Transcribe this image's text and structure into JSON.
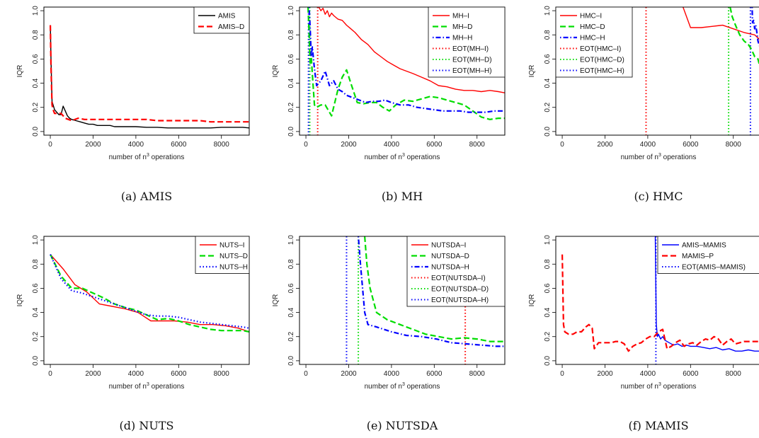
{
  "chart_data": [
    {
      "id": "amis",
      "type": "line",
      "caption": "(a)  AMIS",
      "xlabel": "number of n³ operations",
      "ylabel": "IQR",
      "xlim": [
        -300,
        9300
      ],
      "ylim": [
        -0.03,
        1.03
      ],
      "xticks": [
        0,
        2000,
        4000,
        6000,
        8000
      ],
      "yticks": [
        0.0,
        0.2,
        0.4,
        0.6,
        0.8,
        1.0
      ],
      "legend_position": "top-right",
      "series": [
        {
          "name": "AMIS",
          "color": "#000000",
          "dash": "solid",
          "x": [
            0,
            30,
            80,
            130,
            200,
            300,
            400,
            500,
            600,
            700,
            800,
            900,
            1000,
            1200,
            1400,
            1600,
            1800,
            2000,
            2200,
            2400,
            2600,
            2800,
            3000,
            3500,
            4000,
            4500,
            5000,
            5500,
            6000,
            6500,
            7000,
            7500,
            8000,
            8500,
            9000,
            9300
          ],
          "y": [
            0.88,
            0.6,
            0.25,
            0.22,
            0.18,
            0.16,
            0.14,
            0.14,
            0.21,
            0.17,
            0.13,
            0.11,
            0.1,
            0.09,
            0.08,
            0.07,
            0.06,
            0.06,
            0.05,
            0.05,
            0.05,
            0.05,
            0.04,
            0.04,
            0.04,
            0.035,
            0.035,
            0.03,
            0.03,
            0.03,
            0.03,
            0.03,
            0.035,
            0.035,
            0.035,
            0.03
          ]
        },
        {
          "name": "AMIS–D",
          "color": "#ff0000",
          "dash": "dashed",
          "x": [
            0,
            30,
            80,
            130,
            200,
            300,
            500,
            700,
            1000,
            1300,
            1600,
            2000,
            2500,
            3000,
            3500,
            4000,
            4500,
            5000,
            5500,
            6000,
            6500,
            7000,
            7500,
            8000,
            8500,
            9000,
            9300
          ],
          "y": [
            0.88,
            0.55,
            0.22,
            0.18,
            0.15,
            0.15,
            0.15,
            0.11,
            0.09,
            0.11,
            0.1,
            0.1,
            0.1,
            0.1,
            0.1,
            0.1,
            0.1,
            0.09,
            0.09,
            0.09,
            0.09,
            0.09,
            0.08,
            0.08,
            0.08,
            0.08,
            0.08
          ]
        }
      ],
      "vlines": []
    },
    {
      "id": "mh",
      "type": "line",
      "caption": "(b)  MH",
      "xlabel": "number of n³ operations",
      "ylabel": "IQR",
      "xlim": [
        -300,
        9300
      ],
      "ylim": [
        -0.03,
        1.03
      ],
      "xticks": [
        0,
        2000,
        4000,
        6000,
        8000
      ],
      "yticks": [
        0.0,
        0.2,
        0.4,
        0.6,
        0.8,
        1.0
      ],
      "legend_position": "top-right",
      "series": [
        {
          "name": "MH–I",
          "color": "#ff0000",
          "dash": "solid",
          "x": [
            600,
            700,
            800,
            900,
            1000,
            1100,
            1200,
            1300,
            1500,
            1700,
            1900,
            2100,
            2300,
            2600,
            2900,
            3200,
            3500,
            3800,
            4100,
            4400,
            4700,
            5000,
            5400,
            5800,
            6200,
            6600,
            7000,
            7400,
            7800,
            8200,
            8600,
            9000,
            9300
          ],
          "y": [
            1.03,
            1.0,
            1.02,
            0.97,
            1.0,
            0.95,
            0.98,
            0.96,
            0.93,
            0.92,
            0.88,
            0.85,
            0.82,
            0.76,
            0.72,
            0.66,
            0.62,
            0.58,
            0.55,
            0.52,
            0.5,
            0.48,
            0.45,
            0.42,
            0.38,
            0.37,
            0.35,
            0.34,
            0.34,
            0.33,
            0.34,
            0.33,
            0.32
          ]
        },
        {
          "name": "MH–D",
          "color": "#00dd00",
          "dash": "dashed",
          "x": [
            100,
            150,
            200,
            250,
            300,
            400,
            500,
            700,
            900,
            1200,
            1500,
            1700,
            1900,
            2100,
            2400,
            2700,
            3000,
            3300,
            3600,
            3900,
            4200,
            4600,
            5000,
            5400,
            5800,
            6200,
            6600,
            7000,
            7400,
            7800,
            8200,
            8600,
            9000,
            9300
          ],
          "y": [
            1.03,
            0.8,
            0.55,
            0.62,
            0.48,
            0.22,
            0.2,
            0.22,
            0.22,
            0.13,
            0.35,
            0.45,
            0.51,
            0.4,
            0.24,
            0.23,
            0.24,
            0.24,
            0.2,
            0.17,
            0.22,
            0.26,
            0.25,
            0.27,
            0.29,
            0.28,
            0.26,
            0.24,
            0.22,
            0.17,
            0.12,
            0.1,
            0.11,
            0.11
          ]
        },
        {
          "name": "MH–H",
          "color": "#0000ff",
          "dash": "dotdash",
          "x": [
            150,
            200,
            250,
            300,
            400,
            500,
            700,
            900,
            1100,
            1300,
            1500,
            1700,
            1900,
            2200,
            2500,
            2800,
            3100,
            3400,
            3700,
            4000,
            4400,
            4800,
            5200,
            5600,
            6000,
            6400,
            6800,
            7200,
            7600,
            8000,
            8400,
            8800,
            9300
          ],
          "y": [
            1.03,
            0.85,
            0.62,
            0.7,
            0.52,
            0.38,
            0.42,
            0.5,
            0.38,
            0.42,
            0.35,
            0.33,
            0.3,
            0.28,
            0.26,
            0.24,
            0.25,
            0.25,
            0.26,
            0.24,
            0.22,
            0.22,
            0.2,
            0.19,
            0.18,
            0.17,
            0.17,
            0.17,
            0.16,
            0.16,
            0.16,
            0.17,
            0.17
          ]
        }
      ],
      "vlines": [
        {
          "name": "EOT(MH–I)",
          "color": "#ff0000",
          "x": 550
        },
        {
          "name": "EOT(MH–D)",
          "color": "#00dd00",
          "x": 180
        },
        {
          "name": "EOT(MH–H)",
          "color": "#0000ff",
          "x": 120
        }
      ]
    },
    {
      "id": "hmc",
      "type": "line",
      "caption": "(c)  HMC",
      "xlabel": "number of n³ operations",
      "ylabel": "IQR",
      "xlim": [
        -300,
        9300
      ],
      "ylim": [
        -0.03,
        1.03
      ],
      "xticks": [
        0,
        2000,
        4000,
        6000,
        8000
      ],
      "yticks": [
        0.0,
        0.2,
        0.4,
        0.6,
        0.8,
        1.0
      ],
      "legend_position": "top-left",
      "series": [
        {
          "name": "HMC–I",
          "color": "#ff0000",
          "dash": "solid",
          "x": [
            5650,
            6000,
            6500,
            7000,
            7500,
            8000,
            8500,
            9000,
            9300
          ],
          "y": [
            1.03,
            0.86,
            0.86,
            0.87,
            0.88,
            0.85,
            0.82,
            0.8,
            0.75
          ]
        },
        {
          "name": "HMC–D",
          "color": "#00dd00",
          "dash": "dashed",
          "x": [
            7850,
            7950,
            8100,
            8300,
            8500,
            8700,
            8850,
            9000,
            9150,
            9300
          ],
          "y": [
            1.03,
            0.95,
            0.88,
            0.8,
            0.75,
            0.72,
            0.68,
            0.62,
            0.6,
            0.5
          ]
        },
        {
          "name": "HMC–H",
          "color": "#0000ff",
          "dash": "dotdash",
          "x": [
            8880,
            8900,
            8950,
            9000,
            9050,
            9100,
            9150,
            9200,
            9300
          ],
          "y": [
            1.03,
            0.9,
            0.92,
            0.85,
            0.88,
            0.82,
            0.75,
            0.72,
            0.68
          ]
        }
      ],
      "vlines": [
        {
          "name": "EOT(HMC–I)",
          "color": "#ff0000",
          "x": 3920
        },
        {
          "name": "EOT(HMC–D)",
          "color": "#00dd00",
          "x": 7780
        },
        {
          "name": "EOT(HMC–H)",
          "color": "#0000ff",
          "x": 8800
        }
      ]
    },
    {
      "id": "nuts",
      "type": "line",
      "caption": "(d)  NUTS",
      "xlabel": "number of n³ operations",
      "ylabel": "IQR",
      "xlim": [
        -300,
        9300
      ],
      "ylim": [
        -0.03,
        1.03
      ],
      "xticks": [
        0,
        2000,
        4000,
        6000,
        8000
      ],
      "yticks": [
        0.0,
        0.2,
        0.4,
        0.6,
        0.8,
        1.0
      ],
      "legend_position": "top-right",
      "series": [
        {
          "name": "NUTS–I",
          "color": "#ff0000",
          "dash": "solid",
          "x": [
            0,
            600,
            1150,
            1700,
            2300,
            2900,
            3500,
            4100,
            4700,
            5300,
            5800,
            6400,
            7000,
            7600,
            8200,
            8800,
            9300
          ],
          "y": [
            0.88,
            0.76,
            0.63,
            0.57,
            0.47,
            0.45,
            0.43,
            0.4,
            0.33,
            0.33,
            0.33,
            0.32,
            0.3,
            0.3,
            0.29,
            0.27,
            0.24
          ]
        },
        {
          "name": "NUTS–D",
          "color": "#00dd00",
          "dash": "dashed",
          "x": [
            0,
            500,
            1000,
            1500,
            2000,
            2500,
            3000,
            3500,
            4000,
            4500,
            5000,
            5500,
            6000,
            6500,
            7000,
            7500,
            8000,
            8500,
            9000,
            9300
          ],
          "y": [
            0.88,
            0.7,
            0.6,
            0.6,
            0.56,
            0.52,
            0.47,
            0.44,
            0.42,
            0.38,
            0.34,
            0.35,
            0.33,
            0.3,
            0.28,
            0.26,
            0.25,
            0.25,
            0.25,
            0.24
          ]
        },
        {
          "name": "NUTS–H",
          "color": "#0000ff",
          "dash": "dotted",
          "x": [
            0,
            500,
            1000,
            1500,
            2000,
            2500,
            3000,
            3500,
            4000,
            4500,
            5000,
            5500,
            6000,
            6500,
            7000,
            7500,
            8000,
            8500,
            9000,
            9300
          ],
          "y": [
            0.88,
            0.68,
            0.58,
            0.56,
            0.53,
            0.5,
            0.47,
            0.44,
            0.41,
            0.38,
            0.37,
            0.37,
            0.36,
            0.34,
            0.32,
            0.31,
            0.3,
            0.29,
            0.28,
            0.27
          ]
        }
      ],
      "vlines": []
    },
    {
      "id": "nutsda",
      "type": "line",
      "caption": "(e)  NUTSDA",
      "xlabel": "number of n³ operations",
      "ylabel": "IQR",
      "xlim": [
        -300,
        9300
      ],
      "ylim": [
        -0.03,
        1.03
      ],
      "xticks": [
        0,
        2000,
        4000,
        6000,
        8000
      ],
      "yticks": [
        0.0,
        0.2,
        0.4,
        0.6,
        0.8,
        1.0
      ],
      "legend_position": "top-right",
      "series": [
        {
          "name": "NUTSDA–I",
          "color": "#ff0000",
          "dash": "solid",
          "x": [
            7700,
            7800,
            8000,
            8300,
            8600,
            9000,
            9300
          ],
          "y": [
            1.03,
            0.85,
            0.64,
            0.61,
            0.52,
            0.47,
            0.47
          ]
        },
        {
          "name": "NUTSDA–D",
          "color": "#00dd00",
          "dash": "dashed",
          "x": [
            2750,
            2850,
            3000,
            3300,
            3800,
            4400,
            5000,
            5600,
            6200,
            6800,
            7400,
            8000,
            8600,
            9300
          ],
          "y": [
            1.03,
            0.8,
            0.6,
            0.4,
            0.34,
            0.3,
            0.26,
            0.22,
            0.2,
            0.18,
            0.19,
            0.18,
            0.16,
            0.16
          ]
        },
        {
          "name": "NUTSDA–H",
          "color": "#0000ff",
          "dash": "dotdash",
          "x": [
            2450,
            2550,
            2650,
            2750,
            2900,
            3300,
            4000,
            4700,
            5400,
            6100,
            6800,
            7500,
            8200,
            8900,
            9300
          ],
          "y": [
            1.03,
            0.8,
            0.6,
            0.4,
            0.3,
            0.28,
            0.24,
            0.21,
            0.2,
            0.18,
            0.15,
            0.14,
            0.13,
            0.12,
            0.12
          ]
        }
      ],
      "vlines": [
        {
          "name": "EOT(NUTSDA–I)",
          "color": "#ff0000",
          "x": 7450
        },
        {
          "name": "EOT(NUTSDA–D)",
          "color": "#00dd00",
          "x": 2450
        },
        {
          "name": "EOT(NUTSDA–H)",
          "color": "#0000ff",
          "x": 1900
        }
      ]
    },
    {
      "id": "mamis",
      "type": "line",
      "caption": "(f)  MAMIS",
      "xlabel": "number of n³ operations",
      "ylabel": "IQR",
      "xlim": [
        -300,
        9300
      ],
      "ylim": [
        -0.03,
        1.03
      ],
      "xticks": [
        0,
        2000,
        4000,
        6000,
        8000
      ],
      "yticks": [
        0.0,
        0.2,
        0.4,
        0.6,
        0.8,
        1.0
      ],
      "legend_position": "top-right",
      "series": [
        {
          "name": "AMIS–MAMIS",
          "color": "#0000ff",
          "dash": "solid",
          "x": [
            4350,
            4370,
            4400,
            4450,
            4500,
            4600,
            4700,
            4800,
            5000,
            5200,
            5400,
            5600,
            5800,
            6000,
            6300,
            6600,
            6900,
            7200,
            7500,
            7800,
            8100,
            8400,
            8700,
            9000,
            9300
          ],
          "y": [
            1.03,
            0.7,
            0.3,
            0.2,
            0.22,
            0.18,
            0.2,
            0.17,
            0.15,
            0.13,
            0.14,
            0.12,
            0.13,
            0.12,
            0.12,
            0.11,
            0.1,
            0.11,
            0.09,
            0.1,
            0.08,
            0.08,
            0.09,
            0.08,
            0.08
          ]
        },
        {
          "name": "MAMIS–P",
          "color": "#ff0000",
          "dash": "dashed",
          "x": [
            0,
            60,
            120,
            300,
            500,
            700,
            900,
            1100,
            1250,
            1400,
            1500,
            1700,
            1900,
            2100,
            2300,
            2500,
            2700,
            2900,
            3100,
            3300,
            3500,
            3700,
            3900,
            4100,
            4300,
            4500,
            4700,
            4900,
            5100,
            5300,
            5500,
            5700,
            5900,
            6100,
            6300,
            6500,
            6700,
            6900,
            7100,
            7300,
            7500,
            7700,
            7900,
            8100,
            8300,
            8500,
            8700,
            8900,
            9100,
            9300
          ],
          "y": [
            0.88,
            0.3,
            0.24,
            0.22,
            0.22,
            0.24,
            0.24,
            0.28,
            0.3,
            0.27,
            0.1,
            0.15,
            0.15,
            0.15,
            0.15,
            0.16,
            0.16,
            0.14,
            0.08,
            0.12,
            0.14,
            0.15,
            0.18,
            0.2,
            0.2,
            0.24,
            0.26,
            0.1,
            0.12,
            0.15,
            0.17,
            0.12,
            0.14,
            0.15,
            0.13,
            0.16,
            0.18,
            0.17,
            0.2,
            0.18,
            0.13,
            0.16,
            0.18,
            0.14,
            0.15,
            0.16,
            0.16,
            0.16,
            0.16,
            0.16
          ]
        }
      ],
      "vlines": [
        {
          "name": "EOT(AMIS–MAMIS)",
          "color": "#0000ff",
          "x": 4380
        }
      ]
    }
  ]
}
